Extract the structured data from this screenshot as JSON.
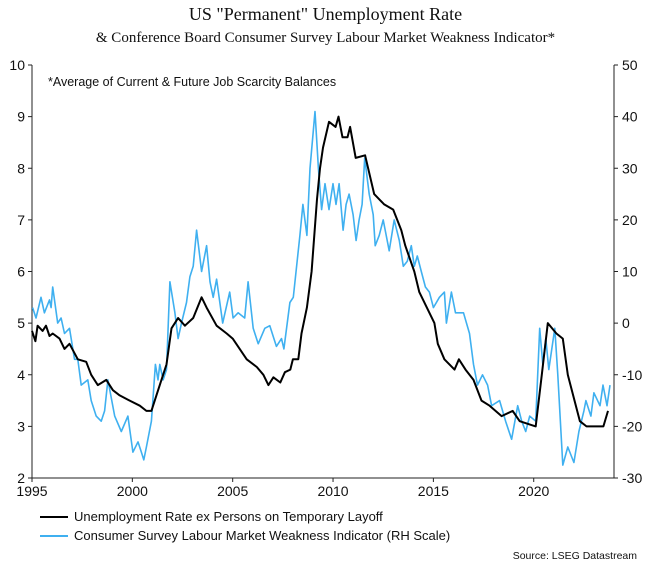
{
  "chart_data": {
    "type": "line",
    "title": "US \"Permanent\" Unemployment Rate",
    "subtitle": "& Conference Board Consumer Survey Labour Market Weakness Indicator*",
    "annotation": "*Average of Current & Future Job Scarcity Balances",
    "source": "Source: LSEG Datastream",
    "x_ticks": [
      "1995",
      "2000",
      "2005",
      "2010",
      "2015",
      "2020"
    ],
    "xlim": [
      1995,
      2024
    ],
    "left_axis": {
      "ylim": [
        2,
        10
      ],
      "ticks": [
        "2",
        "3",
        "4",
        "5",
        "6",
        "7",
        "8",
        "9",
        "10"
      ]
    },
    "right_axis": {
      "ylim": [
        -30,
        50
      ],
      "ticks": [
        "-30",
        "-20",
        "-10",
        "0",
        "10",
        "20",
        "30",
        "40",
        "50"
      ]
    },
    "grid": false,
    "legend_position": "bottom-left",
    "series": [
      {
        "name": "Unemployment Rate ex Persons on Temporary Layoff",
        "axis": "left",
        "color": "#000000",
        "points": [
          [
            1995.0,
            4.85
          ],
          [
            1995.17,
            4.65
          ],
          [
            1995.28,
            4.95
          ],
          [
            1995.53,
            4.85
          ],
          [
            1995.7,
            4.95
          ],
          [
            1995.87,
            4.75
          ],
          [
            1996.03,
            4.8
          ],
          [
            1996.37,
            4.7
          ],
          [
            1996.62,
            4.5
          ],
          [
            1996.87,
            4.6
          ],
          [
            1997.28,
            4.3
          ],
          [
            1997.7,
            4.25
          ],
          [
            1997.95,
            4.0
          ],
          [
            1998.28,
            3.8
          ],
          [
            1998.7,
            3.9
          ],
          [
            1999.03,
            3.7
          ],
          [
            1999.37,
            3.6
          ],
          [
            1999.87,
            3.5
          ],
          [
            2000.37,
            3.4
          ],
          [
            2000.7,
            3.3
          ],
          [
            2000.95,
            3.3
          ],
          [
            2001.2,
            3.6
          ],
          [
            2001.7,
            4.2
          ],
          [
            2001.95,
            4.9
          ],
          [
            2002.28,
            5.1
          ],
          [
            2002.62,
            4.95
          ],
          [
            2003.03,
            5.1
          ],
          [
            2003.45,
            5.5
          ],
          [
            2003.7,
            5.3
          ],
          [
            2004.2,
            4.95
          ],
          [
            2004.7,
            4.8
          ],
          [
            2005.0,
            4.7
          ],
          [
            2005.35,
            4.5
          ],
          [
            2005.7,
            4.3
          ],
          [
            2006.2,
            4.15
          ],
          [
            2006.53,
            4.0
          ],
          [
            2006.78,
            3.8
          ],
          [
            2007.03,
            3.95
          ],
          [
            2007.37,
            3.85
          ],
          [
            2007.6,
            4.05
          ],
          [
            2007.87,
            4.1
          ],
          [
            2008.0,
            4.3
          ],
          [
            2008.27,
            4.3
          ],
          [
            2008.43,
            4.8
          ],
          [
            2008.7,
            5.3
          ],
          [
            2008.93,
            6.0
          ],
          [
            2009.2,
            7.4
          ],
          [
            2009.35,
            8.0
          ],
          [
            2009.5,
            8.4
          ],
          [
            2009.8,
            8.9
          ],
          [
            2010.13,
            8.8
          ],
          [
            2010.27,
            9.0
          ],
          [
            2010.47,
            8.6
          ],
          [
            2010.72,
            8.6
          ],
          [
            2010.85,
            8.8
          ],
          [
            2011.13,
            8.2
          ],
          [
            2011.6,
            8.25
          ],
          [
            2012.05,
            7.5
          ],
          [
            2012.55,
            7.3
          ],
          [
            2013.0,
            7.2
          ],
          [
            2013.4,
            6.8
          ],
          [
            2013.6,
            6.5
          ],
          [
            2014.05,
            6.0
          ],
          [
            2014.3,
            5.6
          ],
          [
            2015.05,
            5.0
          ],
          [
            2015.22,
            4.6
          ],
          [
            2015.55,
            4.3
          ],
          [
            2016.05,
            4.1
          ],
          [
            2016.27,
            4.3
          ],
          [
            2016.6,
            4.1
          ],
          [
            2017.0,
            3.9
          ],
          [
            2017.4,
            3.5
          ],
          [
            2017.8,
            3.4
          ],
          [
            2018.4,
            3.2
          ],
          [
            2018.95,
            3.3
          ],
          [
            2019.3,
            3.1
          ],
          [
            2020.1,
            3.0
          ],
          [
            2020.4,
            4.0
          ],
          [
            2020.7,
            5.0
          ],
          [
            2021.13,
            4.8
          ],
          [
            2021.45,
            4.7
          ],
          [
            2021.7,
            4.0
          ],
          [
            2022.3,
            3.1
          ],
          [
            2022.63,
            3.0
          ],
          [
            2023.13,
            3.0
          ],
          [
            2023.47,
            3.0
          ],
          [
            2023.7,
            3.3
          ]
        ]
      },
      {
        "name": "Consumer Survey Labour Market Weakness Indicator (RH Scale)",
        "axis": "right",
        "color": "#3fb0f0",
        "points": [
          [
            1995.03,
            3
          ],
          [
            1995.2,
            1
          ],
          [
            1995.45,
            5
          ],
          [
            1995.62,
            2
          ],
          [
            1995.87,
            4.5
          ],
          [
            1995.95,
            3
          ],
          [
            1996.03,
            7
          ],
          [
            1996.28,
            0
          ],
          [
            1996.45,
            1
          ],
          [
            1996.62,
            -2
          ],
          [
            1996.87,
            -1
          ],
          [
            1997.12,
            -7
          ],
          [
            1997.28,
            -7
          ],
          [
            1997.45,
            -12
          ],
          [
            1997.78,
            -11
          ],
          [
            1997.95,
            -15
          ],
          [
            1998.2,
            -18
          ],
          [
            1998.45,
            -19
          ],
          [
            1998.62,
            -17
          ],
          [
            1998.78,
            -11
          ],
          [
            1999.12,
            -18
          ],
          [
            1999.45,
            -21
          ],
          [
            1999.78,
            -18
          ],
          [
            2000.03,
            -25
          ],
          [
            2000.28,
            -23
          ],
          [
            2000.45,
            -25
          ],
          [
            2000.57,
            -26.5
          ],
          [
            2000.7,
            -24
          ],
          [
            2000.95,
            -19
          ],
          [
            2001.15,
            -8
          ],
          [
            2001.28,
            -11
          ],
          [
            2001.37,
            -8
          ],
          [
            2001.53,
            -11
          ],
          [
            2001.7,
            -9
          ],
          [
            2001.87,
            8
          ],
          [
            2002.12,
            2
          ],
          [
            2002.28,
            -3
          ],
          [
            2002.45,
            0
          ],
          [
            2002.7,
            4
          ],
          [
            2002.87,
            9
          ],
          [
            2003.03,
            11
          ],
          [
            2003.2,
            18
          ],
          [
            2003.45,
            10
          ],
          [
            2003.7,
            15
          ],
          [
            2003.87,
            8
          ],
          [
            2004.03,
            5
          ],
          [
            2004.2,
            8.5
          ],
          [
            2004.5,
            0
          ],
          [
            2004.85,
            6
          ],
          [
            2005.02,
            1
          ],
          [
            2005.27,
            2
          ],
          [
            2005.6,
            1
          ],
          [
            2005.77,
            8
          ],
          [
            2006.02,
            -1
          ],
          [
            2006.27,
            -4
          ],
          [
            2006.6,
            -1
          ],
          [
            2006.85,
            -0.5
          ],
          [
            2007.18,
            -4.5
          ],
          [
            2007.43,
            -3
          ],
          [
            2007.55,
            -5
          ],
          [
            2007.85,
            4
          ],
          [
            2008.02,
            5
          ],
          [
            2008.35,
            17
          ],
          [
            2008.5,
            23
          ],
          [
            2008.7,
            17
          ],
          [
            2008.85,
            30
          ],
          [
            2009.1,
            41
          ],
          [
            2009.27,
            30
          ],
          [
            2009.43,
            22
          ],
          [
            2009.6,
            27
          ],
          [
            2009.8,
            22
          ],
          [
            2010.0,
            27
          ],
          [
            2010.15,
            23
          ],
          [
            2010.3,
            27
          ],
          [
            2010.5,
            18
          ],
          [
            2010.65,
            23
          ],
          [
            2010.8,
            25
          ],
          [
            2011.0,
            21
          ],
          [
            2011.15,
            16
          ],
          [
            2011.3,
            20
          ],
          [
            2011.45,
            23
          ],
          [
            2011.58,
            32
          ],
          [
            2011.8,
            25
          ],
          [
            2012.0,
            21
          ],
          [
            2012.1,
            15
          ],
          [
            2012.3,
            17
          ],
          [
            2012.5,
            20
          ],
          [
            2012.8,
            14
          ],
          [
            2013.05,
            20
          ],
          [
            2013.3,
            16
          ],
          [
            2013.5,
            11
          ],
          [
            2013.7,
            12
          ],
          [
            2013.9,
            15
          ],
          [
            2014.05,
            11
          ],
          [
            2014.2,
            13
          ],
          [
            2014.4,
            10
          ],
          [
            2014.6,
            7
          ],
          [
            2014.8,
            6
          ],
          [
            2015.0,
            3
          ],
          [
            2015.3,
            5
          ],
          [
            2015.55,
            6
          ],
          [
            2015.65,
            0
          ],
          [
            2015.9,
            6
          ],
          [
            2016.1,
            2
          ],
          [
            2016.5,
            2
          ],
          [
            2016.8,
            -2
          ],
          [
            2017.0,
            -8
          ],
          [
            2017.2,
            -12
          ],
          [
            2017.45,
            -10
          ],
          [
            2017.7,
            -12
          ],
          [
            2017.9,
            -16
          ],
          [
            2018.3,
            -15
          ],
          [
            2018.6,
            -19
          ],
          [
            2018.9,
            -22.5
          ],
          [
            2019.2,
            -16
          ],
          [
            2019.4,
            -19
          ],
          [
            2019.6,
            -21
          ],
          [
            2019.8,
            -18
          ],
          [
            2020.1,
            -19
          ],
          [
            2020.3,
            -1
          ],
          [
            2020.45,
            -8
          ],
          [
            2020.6,
            -3
          ],
          [
            2020.75,
            -9
          ],
          [
            2021.05,
            -1
          ],
          [
            2021.2,
            -10
          ],
          [
            2021.45,
            -27.5
          ],
          [
            2021.7,
            -24
          ],
          [
            2022.0,
            -27
          ],
          [
            2022.25,
            -21
          ],
          [
            2022.5,
            -17
          ],
          [
            2022.6,
            -15
          ],
          [
            2022.85,
            -18
          ],
          [
            2023.0,
            -13.5
          ],
          [
            2023.3,
            -16
          ],
          [
            2023.45,
            -12
          ],
          [
            2023.65,
            -16
          ],
          [
            2023.8,
            -12
          ]
        ]
      }
    ]
  }
}
